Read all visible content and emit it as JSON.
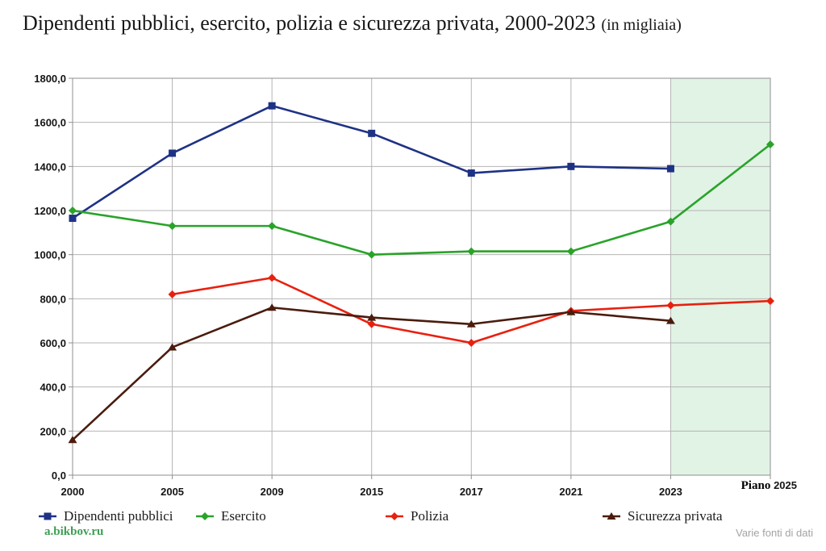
{
  "title": {
    "main": "Dipendenti pubblici, esercito, polizia e sicurezza privata, 2000-2023",
    "suffix": "(in migliaia)"
  },
  "chart_data": {
    "type": "line",
    "categories": [
      "2000",
      "2005",
      "2009",
      "2015",
      "2017",
      "2021",
      "2023",
      "Piano 2025"
    ],
    "x_tick_labels": [
      "2000",
      "2005",
      "2009",
      "2015",
      "2017",
      "2021",
      "2023"
    ],
    "plan_label": {
      "word": "Piano",
      "year": "2025"
    },
    "ylim": [
      0,
      1800
    ],
    "y_tick_step": 200,
    "y_tick_labels": [
      "0,0",
      "200,0",
      "400,0",
      "600,0",
      "800,0",
      "1000,0",
      "1200,0",
      "1400,0",
      "1600,0",
      "1800,0"
    ],
    "grid": true,
    "legend_position": "bottom",
    "plan_region": {
      "from_index": 6,
      "to_index": 7,
      "color": "#e1f3e5"
    },
    "series": [
      {
        "name": "Dipendenti pubblici",
        "color": "#1e3285",
        "marker": "square",
        "values": [
          1165,
          1460,
          1675,
          1550,
          1370,
          1400,
          1390,
          null
        ]
      },
      {
        "name": "Esercito",
        "color": "#29a329",
        "marker": "diamond",
        "values": [
          1200,
          1130,
          1130,
          1000,
          1015,
          1015,
          1150,
          1500
        ]
      },
      {
        "name": "Polizia",
        "color": "#e8200f",
        "marker": "diamond",
        "values": [
          null,
          820,
          895,
          685,
          600,
          745,
          770,
          790
        ]
      },
      {
        "name": "Sicurezza privata",
        "color": "#4a1c0e",
        "marker": "triangle",
        "values": [
          160,
          580,
          760,
          715,
          685,
          740,
          700,
          null
        ]
      }
    ]
  },
  "footer": {
    "source_left": "a.bikbov.ru",
    "source_left_color": "#3d9e52",
    "source_right": "Varie fonti di dati"
  }
}
